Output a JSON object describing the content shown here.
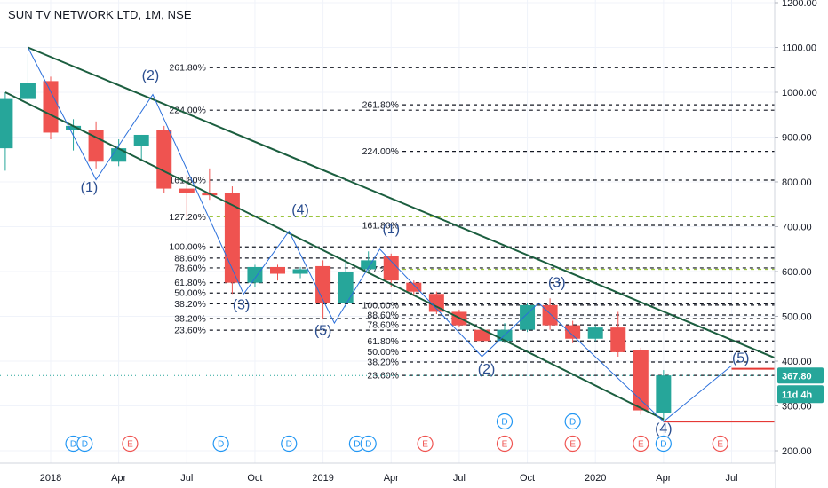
{
  "title": "SUN TV NETWORK LTD, 1M, NSE",
  "chart_data": {
    "type": "candlestick",
    "interval": "1M",
    "exchange": "NSE",
    "symbol": "SUN TV NETWORK LTD",
    "ylim": [
      185,
      1210
    ],
    "y_ticks": [
      "1200.00",
      "1100.00",
      "1000.00",
      "900.00",
      "800.00",
      "700.00",
      "600.00",
      "500.00",
      "400.00",
      "300.00",
      "200.00"
    ],
    "y_tick_values": [
      1200,
      1100,
      1000,
      900,
      800,
      700,
      600,
      500,
      400,
      300,
      200
    ],
    "x_ticks": [
      "2018",
      "Apr",
      "Jul",
      "Oct",
      "2019",
      "Apr",
      "Jul",
      "Oct",
      "2020",
      "Apr",
      "Jul"
    ],
    "x_tick_months": [
      3,
      6,
      9,
      12,
      15,
      18,
      21,
      24,
      27,
      30,
      33
    ],
    "candles": [
      {
        "m": 0,
        "o": 860,
        "h": 905,
        "l": 820,
        "c": 875
      },
      {
        "m": 1,
        "o": 875,
        "h": 1000,
        "l": 825,
        "c": 985
      },
      {
        "m": 2,
        "o": 985,
        "h": 1085,
        "l": 965,
        "c": 1020
      },
      {
        "m": 3,
        "o": 1025,
        "h": 1035,
        "l": 895,
        "c": 910
      },
      {
        "m": 4,
        "o": 915,
        "h": 940,
        "l": 870,
        "c": 925
      },
      {
        "m": 5,
        "o": 915,
        "h": 935,
        "l": 830,
        "c": 845
      },
      {
        "m": 6,
        "o": 845,
        "h": 895,
        "l": 835,
        "c": 875
      },
      {
        "m": 7,
        "o": 880,
        "h": 905,
        "l": 850,
        "c": 905
      },
      {
        "m": 8,
        "o": 915,
        "h": 925,
        "l": 775,
        "c": 785
      },
      {
        "m": 9,
        "o": 785,
        "h": 815,
        "l": 720,
        "c": 775
      },
      {
        "m": 10,
        "o": 775,
        "h": 830,
        "l": 760,
        "c": 770
      },
      {
        "m": 11,
        "o": 775,
        "h": 790,
        "l": 550,
        "c": 575
      },
      {
        "m": 12,
        "o": 575,
        "h": 615,
        "l": 565,
        "c": 610
      },
      {
        "m": 13,
        "o": 610,
        "h": 615,
        "l": 580,
        "c": 595
      },
      {
        "m": 14,
        "o": 595,
        "h": 610,
        "l": 585,
        "c": 605
      },
      {
        "m": 15,
        "o": 612,
        "h": 625,
        "l": 495,
        "c": 530
      },
      {
        "m": 16,
        "o": 530,
        "h": 630,
        "l": 520,
        "c": 600
      },
      {
        "m": 17,
        "o": 605,
        "h": 645,
        "l": 595,
        "c": 625
      },
      {
        "m": 18,
        "o": 635,
        "h": 640,
        "l": 565,
        "c": 580
      },
      {
        "m": 19,
        "o": 575,
        "h": 580,
        "l": 545,
        "c": 555
      },
      {
        "m": 20,
        "o": 550,
        "h": 555,
        "l": 505,
        "c": 510
      },
      {
        "m": 21,
        "o": 510,
        "h": 515,
        "l": 475,
        "c": 480
      },
      {
        "m": 22,
        "o": 470,
        "h": 475,
        "l": 440,
        "c": 445
      },
      {
        "m": 23,
        "o": 445,
        "h": 485,
        "l": 440,
        "c": 470
      },
      {
        "m": 24,
        "o": 470,
        "h": 530,
        "l": 465,
        "c": 525
      },
      {
        "m": 25,
        "o": 525,
        "h": 540,
        "l": 470,
        "c": 480
      },
      {
        "m": 26,
        "o": 480,
        "h": 490,
        "l": 440,
        "c": 450
      },
      {
        "m": 27,
        "o": 450,
        "h": 480,
        "l": 445,
        "c": 475
      },
      {
        "m": 28,
        "o": 475,
        "h": 510,
        "l": 410,
        "c": 420
      },
      {
        "m": 29,
        "o": 425,
        "h": 430,
        "l": 280,
        "c": 290
      },
      {
        "m": 30,
        "o": 285,
        "h": 380,
        "l": 265,
        "c": 368
      }
    ],
    "last_price": "367.80",
    "countdown": "11d 4h",
    "channel_lines": [
      {
        "name": "upper-channel",
        "from": {
          "m": 2,
          "price": 1100
        },
        "to": {
          "m": 40,
          "price": 300
        }
      },
      {
        "name": "lower-channel",
        "from": {
          "m": 1,
          "price": 1000
        },
        "to": {
          "m": 30,
          "price": 270
        }
      }
    ],
    "wave_paths": [
      [
        {
          "m": 2,
          "p": 1100
        },
        {
          "m": 5,
          "p": 805
        },
        {
          "m": 7.5,
          "p": 995
        },
        {
          "m": 11.5,
          "p": 550
        },
        {
          "m": 13.5,
          "p": 690
        },
        {
          "m": 15.5,
          "p": 485
        },
        {
          "m": 17.5,
          "p": 650
        },
        {
          "m": 22,
          "p": 410
        },
        {
          "m": 24.5,
          "p": 530
        },
        {
          "m": 30,
          "p": 265
        },
        {
          "m": 33,
          "p": 390
        }
      ]
    ],
    "wave_labels": [
      {
        "text": "(1)",
        "m": 4.7,
        "p": 778
      },
      {
        "text": "(2)",
        "m": 7.4,
        "p": 1028
      },
      {
        "text": "(3)",
        "m": 11.4,
        "p": 516
      },
      {
        "text": "(4)",
        "m": 14.0,
        "p": 728
      },
      {
        "text": "(5)",
        "m": 15.0,
        "p": 458
      },
      {
        "text": "(1)",
        "m": 18.0,
        "p": 685
      },
      {
        "text": "(2)",
        "m": 22.2,
        "p": 372
      },
      {
        "text": "(3)",
        "m": 25.3,
        "p": 565
      },
      {
        "text": "(4)",
        "m": 30.0,
        "p": 240
      },
      {
        "text": "(5)",
        "m": 33.4,
        "p": 397
      }
    ],
    "fib_levels": [
      {
        "label": "261.80%",
        "price": 1055,
        "m_from": 10.0,
        "m_to": 41
      },
      {
        "label": "224.00%",
        "price": 960,
        "m_from": 10.0,
        "m_to": 41
      },
      {
        "label": "261.80%",
        "price": 972,
        "m_from": 18.5,
        "m_to": 41
      },
      {
        "label": "224.00%",
        "price": 868,
        "m_from": 18.5,
        "m_to": 41
      },
      {
        "label": "161.80%",
        "price": 804,
        "m_from": 10.0,
        "m_to": 41
      },
      {
        "label": "127.20%",
        "price": 722,
        "m_from": 10.0,
        "m_to": 41,
        "color": "#9bc53d"
      },
      {
        "label": "161.80%",
        "price": 703,
        "m_from": 18.5,
        "m_to": 41
      },
      {
        "label": "100.00%",
        "price": 655,
        "m_from": 10.0,
        "m_to": 41
      },
      {
        "label": "88.60%",
        "price": 630,
        "m_from": 10.0,
        "m_to": 41
      },
      {
        "label": "78.60%",
        "price": 608,
        "m_from": 10.0,
        "m_to": 41
      },
      {
        "label": "127.20%",
        "price": 605,
        "m_from": 18.5,
        "m_to": 41,
        "color": "#9bc53d"
      },
      {
        "label": "61.80%",
        "price": 575,
        "m_from": 10.0,
        "m_to": 41
      },
      {
        "label": "50.00%",
        "price": 552,
        "m_from": 10.0,
        "m_to": 41
      },
      {
        "label": "38.20%",
        "price": 528,
        "m_from": 10.0,
        "m_to": 41
      },
      {
        "label": "100.00%",
        "price": 525,
        "m_from": 18.5,
        "m_to": 41
      },
      {
        "label": "88.60%",
        "price": 503,
        "m_from": 18.5,
        "m_to": 41
      },
      {
        "label": "38.20%",
        "price": 495,
        "m_from": 10.0,
        "m_to": 41
      },
      {
        "label": "78.60%",
        "price": 481,
        "m_from": 18.5,
        "m_to": 41
      },
      {
        "label": "23.60%",
        "price": 469,
        "m_from": 10.0,
        "m_to": 41
      },
      {
        "label": "61.80%",
        "price": 445,
        "m_from": 18.5,
        "m_to": 41
      },
      {
        "label": "50.00%",
        "price": 421,
        "m_from": 18.5,
        "m_to": 41
      },
      {
        "label": "38.20%",
        "price": 398,
        "m_from": 18.5,
        "m_to": 41
      },
      {
        "label": "23.60%",
        "price": 368,
        "m_from": 18.5,
        "m_to": 41
      }
    ],
    "red_lines": [
      {
        "price": 383,
        "m_from": 33,
        "m_to": 39
      },
      {
        "price": 265,
        "m_from": 30,
        "m_to": 39
      }
    ],
    "events": [
      {
        "type": "D",
        "m": 4.0,
        "row": "low"
      },
      {
        "type": "D",
        "m": 4.5,
        "row": "low"
      },
      {
        "type": "E",
        "m": 6.5,
        "row": "low"
      },
      {
        "type": "D",
        "m": 10.5,
        "row": "low"
      },
      {
        "type": "D",
        "m": 13.5,
        "row": "low"
      },
      {
        "type": "D",
        "m": 16.5,
        "row": "low"
      },
      {
        "type": "D",
        "m": 17.0,
        "row": "low"
      },
      {
        "type": "E",
        "m": 19.5,
        "row": "low"
      },
      {
        "type": "D",
        "m": 23.0,
        "row": "high"
      },
      {
        "type": "E",
        "m": 23.0,
        "row": "low"
      },
      {
        "type": "D",
        "m": 26.0,
        "row": "high"
      },
      {
        "type": "E",
        "m": 26.0,
        "row": "low"
      },
      {
        "type": "E",
        "m": 29.0,
        "row": "low"
      },
      {
        "type": "D",
        "m": 30.0,
        "row": "low"
      },
      {
        "type": "E",
        "m": 32.5,
        "row": "low"
      }
    ]
  },
  "colors": {
    "up": "#26a69a",
    "down": "#ef5350",
    "line": "#1b5e3f",
    "wave": "#2a6fdb",
    "event_d": "#2196f3",
    "event_e": "#ef5350"
  }
}
